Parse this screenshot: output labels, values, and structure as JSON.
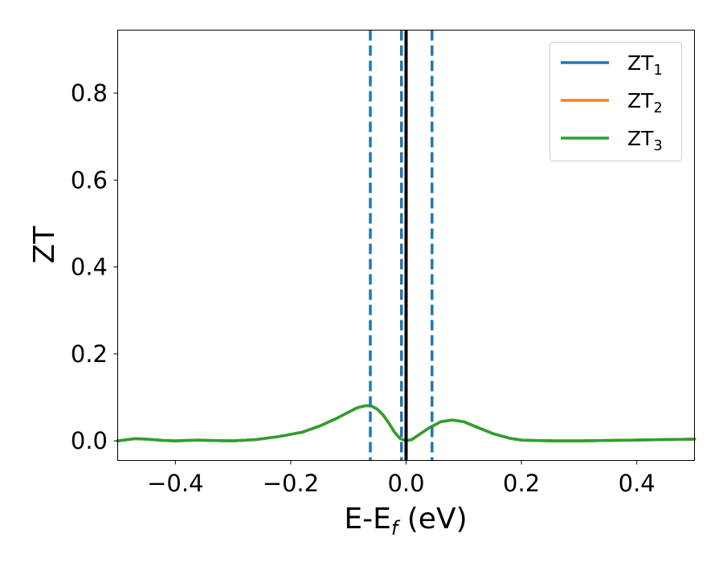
{
  "chart_data": {
    "type": "line",
    "xlabel": {
      "main": "E-E",
      "sub": "f",
      "tail": " (eV)"
    },
    "ylabel": "ZT",
    "xlim": [
      -0.5,
      0.5
    ],
    "ylim": [
      -0.045,
      0.945
    ],
    "x_ticks": [
      -0.4,
      -0.2,
      0.0,
      0.2,
      0.4
    ],
    "x_tick_labels": [
      "−0.4",
      "−0.2",
      "0.0",
      "0.2",
      "0.4"
    ],
    "y_ticks": [
      0.0,
      0.2,
      0.4,
      0.6,
      0.8
    ],
    "y_tick_labels": [
      "0.0",
      "0.2",
      "0.4",
      "0.6",
      "0.8"
    ],
    "grid": false,
    "legend_position": "top-right",
    "series": [
      {
        "name": "ZT",
        "sub": "1",
        "color": "#1f77b4",
        "x": [
          -0.5,
          -0.47,
          -0.45,
          -0.42,
          -0.4,
          -0.38,
          -0.36,
          -0.34,
          -0.3,
          -0.26,
          -0.22,
          -0.18,
          -0.15,
          -0.12,
          -0.1,
          -0.085,
          -0.07,
          -0.06,
          -0.05,
          -0.04,
          -0.03,
          -0.02,
          -0.01,
          0.0,
          0.01,
          0.02,
          0.04,
          0.06,
          0.08,
          0.1,
          0.12,
          0.15,
          0.18,
          0.2,
          0.22,
          0.26,
          0.3,
          0.35,
          0.4,
          0.45,
          0.5
        ],
        "y": [
          0.0,
          0.005,
          0.004,
          0.001,
          0.0,
          0.001,
          0.002,
          0.001,
          0.0,
          0.003,
          0.01,
          0.02,
          0.034,
          0.052,
          0.066,
          0.076,
          0.081,
          0.08,
          0.073,
          0.06,
          0.041,
          0.02,
          0.005,
          0.0,
          0.003,
          0.012,
          0.03,
          0.044,
          0.048,
          0.044,
          0.033,
          0.017,
          0.006,
          0.002,
          0.001,
          0.0,
          0.0,
          0.001,
          0.002,
          0.003,
          0.004
        ]
      },
      {
        "name": "ZT",
        "sub": "2",
        "color": "#ff7f0e",
        "x": [
          -0.5,
          -0.47,
          -0.45,
          -0.42,
          -0.4,
          -0.38,
          -0.36,
          -0.34,
          -0.3,
          -0.26,
          -0.22,
          -0.18,
          -0.15,
          -0.12,
          -0.1,
          -0.085,
          -0.07,
          -0.06,
          -0.05,
          -0.04,
          -0.03,
          -0.02,
          -0.01,
          0.0,
          0.01,
          0.02,
          0.04,
          0.06,
          0.08,
          0.1,
          0.12,
          0.15,
          0.18,
          0.2,
          0.22,
          0.26,
          0.3,
          0.35,
          0.4,
          0.45,
          0.5
        ],
        "y": [
          0.0,
          0.005,
          0.004,
          0.001,
          0.0,
          0.001,
          0.002,
          0.001,
          0.0,
          0.003,
          0.01,
          0.02,
          0.034,
          0.052,
          0.066,
          0.076,
          0.081,
          0.08,
          0.073,
          0.06,
          0.041,
          0.02,
          0.005,
          0.0,
          0.003,
          0.012,
          0.03,
          0.044,
          0.048,
          0.044,
          0.033,
          0.017,
          0.006,
          0.002,
          0.001,
          0.0,
          0.0,
          0.001,
          0.002,
          0.003,
          0.004
        ]
      },
      {
        "name": "ZT",
        "sub": "3",
        "color": "#2ca02c",
        "x": [
          -0.5,
          -0.47,
          -0.45,
          -0.42,
          -0.4,
          -0.38,
          -0.36,
          -0.34,
          -0.3,
          -0.26,
          -0.22,
          -0.18,
          -0.15,
          -0.12,
          -0.1,
          -0.085,
          -0.07,
          -0.06,
          -0.05,
          -0.04,
          -0.03,
          -0.02,
          -0.01,
          0.0,
          0.01,
          0.02,
          0.04,
          0.06,
          0.08,
          0.1,
          0.12,
          0.15,
          0.18,
          0.2,
          0.22,
          0.26,
          0.3,
          0.35,
          0.4,
          0.45,
          0.5
        ],
        "y": [
          0.0,
          0.005,
          0.004,
          0.001,
          0.0,
          0.001,
          0.002,
          0.001,
          0.0,
          0.003,
          0.01,
          0.02,
          0.034,
          0.052,
          0.066,
          0.076,
          0.081,
          0.08,
          0.073,
          0.06,
          0.041,
          0.02,
          0.005,
          0.0,
          0.003,
          0.012,
          0.03,
          0.044,
          0.048,
          0.044,
          0.033,
          0.017,
          0.006,
          0.002,
          0.001,
          0.0,
          0.0,
          0.001,
          0.002,
          0.003,
          0.004
        ]
      }
    ],
    "vlines": [
      {
        "x": -0.062,
        "style": "dashed",
        "color": "#1f77b4"
      },
      {
        "x": -0.008,
        "style": "dashed",
        "color": "#1f77b4"
      },
      {
        "x": 0.045,
        "style": "dashed",
        "color": "#1f77b4"
      },
      {
        "x": 0.0,
        "style": "solid",
        "color": "#000000"
      }
    ]
  }
}
